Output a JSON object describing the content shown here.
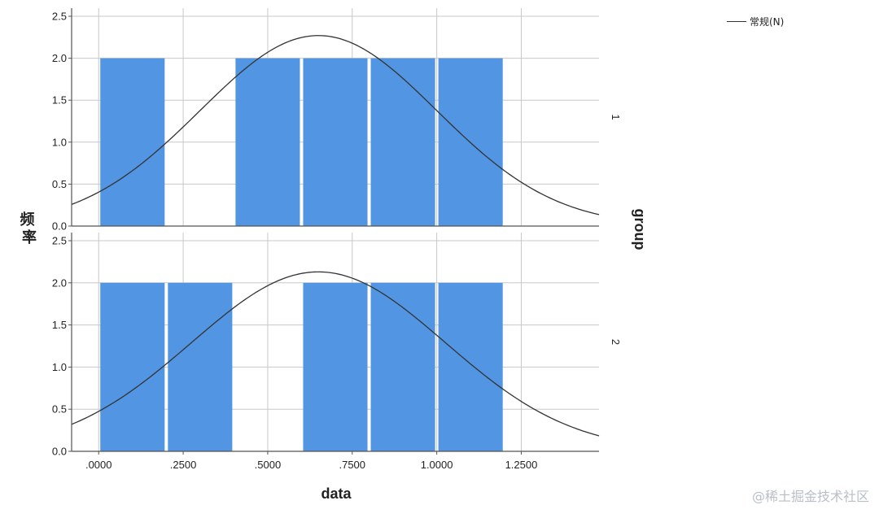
{
  "chart_data": {
    "type": "bar",
    "subtype": "histogram-with-normal-curve",
    "xlabel": "data",
    "ylabel": "频率",
    "facet_label": "group",
    "xlim": [
      -0.08,
      1.48
    ],
    "ylim": [
      0,
      2.5
    ],
    "x_ticks": [
      ".0000",
      ".2500",
      ".5000",
      ".7500",
      "1.0000",
      "1.2500"
    ],
    "x_tick_values": [
      0,
      0.25,
      0.5,
      0.75,
      1.0,
      1.25
    ],
    "y_ticks": [
      "0.0",
      "0.5",
      "1.0",
      "1.5",
      "2.0",
      "2.5"
    ],
    "y_tick_values": [
      0,
      0.5,
      1.0,
      1.5,
      2.0,
      2.5
    ],
    "grid": true,
    "legend": {
      "placement": "top-right",
      "entries": [
        "常规(N)"
      ]
    },
    "bar_color": "#5295e3",
    "curve_color": "#333333",
    "panels": [
      {
        "group": "1",
        "bins": [
          {
            "x0": 0.0,
            "x1": 0.2,
            "count": 2
          },
          {
            "x0": 0.4,
            "x1": 0.6,
            "count": 2
          },
          {
            "x0": 0.6,
            "x1": 0.8,
            "count": 2
          },
          {
            "x0": 0.8,
            "x1": 1.0,
            "count": 2
          },
          {
            "x0": 1.0,
            "x1": 1.2,
            "count": 2
          }
        ],
        "normal_curve": {
          "mean": 0.65,
          "sd": 0.35,
          "peak": 2.27
        }
      },
      {
        "group": "2",
        "bins": [
          {
            "x0": 0.0,
            "x1": 0.2,
            "count": 2
          },
          {
            "x0": 0.2,
            "x1": 0.4,
            "count": 2
          },
          {
            "x0": 0.6,
            "x1": 0.8,
            "count": 2
          },
          {
            "x0": 0.8,
            "x1": 1.0,
            "count": 2
          },
          {
            "x0": 1.0,
            "x1": 1.2,
            "count": 2
          }
        ],
        "normal_curve": {
          "mean": 0.65,
          "sd": 0.375,
          "peak": 2.13
        }
      }
    ]
  },
  "legend_label": "常规(N)",
  "watermark": "@稀土掘金技术社区"
}
